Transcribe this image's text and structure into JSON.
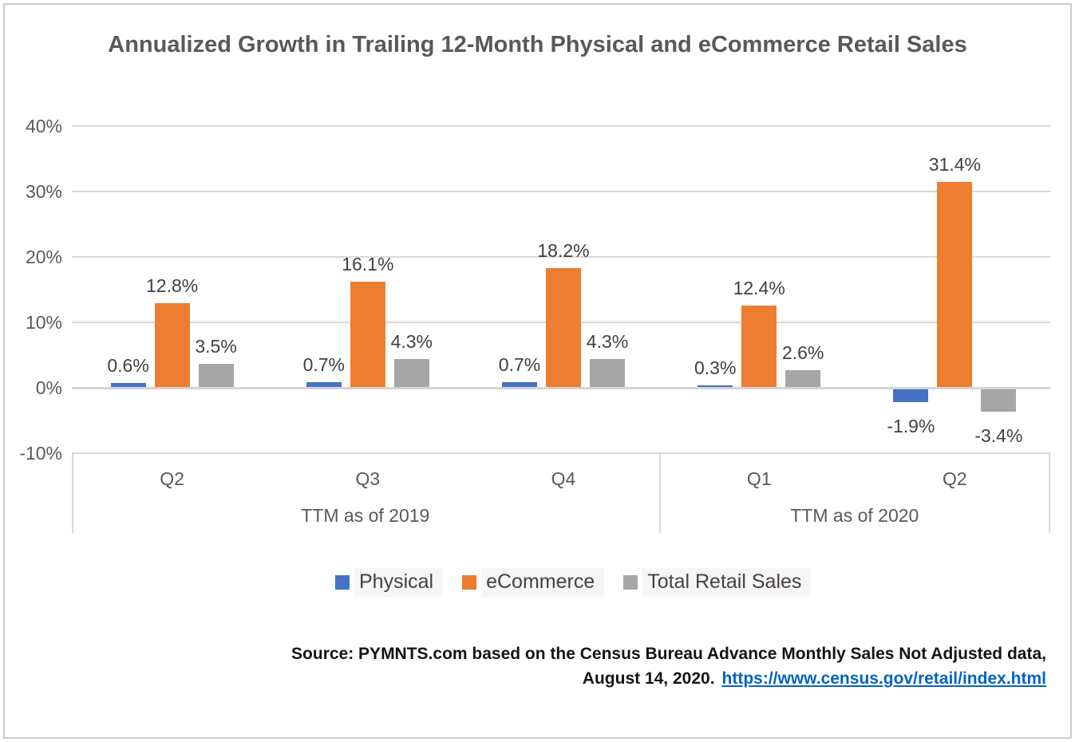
{
  "chart_data": {
    "type": "bar",
    "title": "Annualized Growth in Trailing 12-Month Physical and eCommerce Retail Sales",
    "categories": [
      "Q2",
      "Q3",
      "Q4",
      "Q1",
      "Q2"
    ],
    "category_groups": [
      {
        "label": "TTM as of 2019",
        "start": 0,
        "end": 3
      },
      {
        "label": "TTM as of 2020",
        "start": 3,
        "end": 5
      }
    ],
    "series": [
      {
        "name": "Physical",
        "color": "#4472C4",
        "values": [
          0.6,
          0.7,
          0.7,
          0.3,
          -1.9
        ]
      },
      {
        "name": "eCommerce",
        "color": "#ED7D31",
        "values": [
          12.8,
          16.1,
          18.2,
          12.4,
          31.4
        ]
      },
      {
        "name": "Total Retail Sales",
        "color": "#A6A6A6",
        "values": [
          3.5,
          4.3,
          4.3,
          2.6,
          -3.4
        ]
      }
    ],
    "data_labels": [
      [
        "0.6%",
        "0.7%",
        "0.7%",
        "0.3%",
        "-1.9%"
      ],
      [
        "12.8%",
        "16.1%",
        "18.2%",
        "12.4%",
        "31.4%"
      ],
      [
        "3.5%",
        "4.3%",
        "4.3%",
        "2.6%",
        "-3.4%"
      ]
    ],
    "y_axis": {
      "ticks": [
        "40%",
        "30%",
        "20%",
        "10%",
        "0%",
        "-10%"
      ],
      "tick_values": [
        40,
        30,
        20,
        10,
        0,
        -10
      ],
      "ylim": [
        -10,
        40
      ],
      "grid": true
    },
    "legend": {
      "position": "bottom",
      "entries": [
        "Physical",
        "eCommerce",
        "Total Retail Sales"
      ]
    }
  },
  "source": {
    "line1": "Source: PYMNTS.com based on the Census Bureau Advance Monthly Sales Not Adjusted data,",
    "date_text": "August 14, 2020.",
    "link_text": "https://www.census.gov/retail/index.html"
  },
  "colors": {
    "physical": "#4472C4",
    "ecommerce": "#ED7D31",
    "total_retail": "#A6A6A6",
    "gridline": "#D9D9D9",
    "axis_text": "#595959",
    "title_text": "#595959",
    "link": "#0563C1"
  }
}
